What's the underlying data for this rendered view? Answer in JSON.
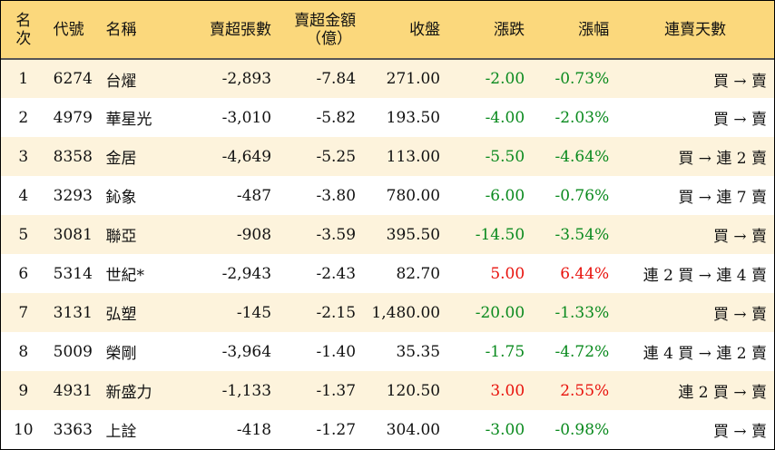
{
  "headers": {
    "rank": "名次",
    "code": "代號",
    "name": "名稱",
    "net_sell_volume": "賣超張數",
    "net_sell_amount_line1": "賣超金額",
    "net_sell_amount_line2": "（億）",
    "close": "收盤",
    "change": "漲跌",
    "change_pct": "漲幅",
    "consecutive_days": "連賣天數"
  },
  "colors": {
    "header_bg": "#fbd87c",
    "odd_row_bg": "#fdf3dc",
    "positive": "#e8120c",
    "negative": "#0a8a1e"
  },
  "rows": [
    {
      "rank": "1",
      "code": "6274",
      "name": "台燿",
      "volume": "-2,893",
      "amount": "-7.84",
      "close": "271.00",
      "change": "-2.00",
      "pct": "-0.73%",
      "trend": "買 → 賣",
      "dir": "neg"
    },
    {
      "rank": "2",
      "code": "4979",
      "name": "華星光",
      "volume": "-3,010",
      "amount": "-5.82",
      "close": "193.50",
      "change": "-4.00",
      "pct": "-2.03%",
      "trend": "買 → 賣",
      "dir": "neg"
    },
    {
      "rank": "3",
      "code": "8358",
      "name": "金居",
      "volume": "-4,649",
      "amount": "-5.25",
      "close": "113.00",
      "change": "-5.50",
      "pct": "-4.64%",
      "trend": "買 → 連 2 賣",
      "dir": "neg"
    },
    {
      "rank": "4",
      "code": "3293",
      "name": "鈊象",
      "volume": "-487",
      "amount": "-3.80",
      "close": "780.00",
      "change": "-6.00",
      "pct": "-0.76%",
      "trend": "買 → 連 7 賣",
      "dir": "neg"
    },
    {
      "rank": "5",
      "code": "3081",
      "name": "聯亞",
      "volume": "-908",
      "amount": "-3.59",
      "close": "395.50",
      "change": "-14.50",
      "pct": "-3.54%",
      "trend": "買 → 賣",
      "dir": "neg"
    },
    {
      "rank": "6",
      "code": "5314",
      "name": "世紀*",
      "volume": "-2,943",
      "amount": "-2.43",
      "close": "82.70",
      "change": "5.00",
      "pct": "6.44%",
      "trend": "連 2 買 → 連 4 賣",
      "dir": "pos"
    },
    {
      "rank": "7",
      "code": "3131",
      "name": "弘塑",
      "volume": "-145",
      "amount": "-2.15",
      "close": "1,480.00",
      "change": "-20.00",
      "pct": "-1.33%",
      "trend": "買 → 賣",
      "dir": "neg"
    },
    {
      "rank": "8",
      "code": "5009",
      "name": "榮剛",
      "volume": "-3,964",
      "amount": "-1.40",
      "close": "35.35",
      "change": "-1.75",
      "pct": "-4.72%",
      "trend": "連 4 買 → 連 2 賣",
      "dir": "neg"
    },
    {
      "rank": "9",
      "code": "4931",
      "name": "新盛力",
      "volume": "-1,133",
      "amount": "-1.37",
      "close": "120.50",
      "change": "3.00",
      "pct": "2.55%",
      "trend": "連 2 買 → 賣",
      "dir": "pos"
    },
    {
      "rank": "10",
      "code": "3363",
      "name": "上詮",
      "volume": "-418",
      "amount": "-1.27",
      "close": "304.00",
      "change": "-3.00",
      "pct": "-0.98%",
      "trend": "買 → 賣",
      "dir": "neg"
    }
  ]
}
